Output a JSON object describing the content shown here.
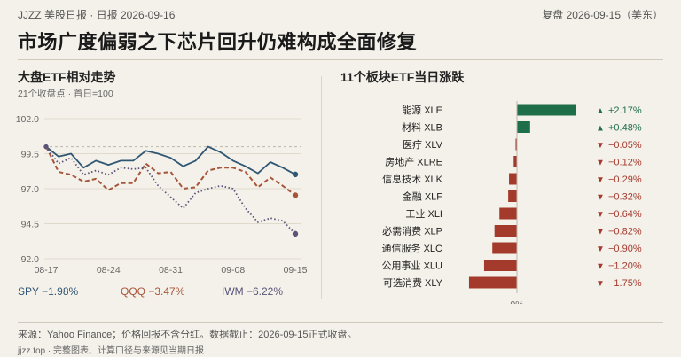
{
  "header": {
    "left": "JJZZ 美股日报 · 日报 2026-09-16",
    "right": "复盘 2026-09-15（美东）"
  },
  "title": "市场广度偏弱之下芯片回升仍难构成全面修复",
  "colors": {
    "SPY": "#2f5673",
    "QQQ": "#a6553a",
    "IWM": "#5a5478",
    "up": "#1f6e4a",
    "down": "#a33a2c"
  },
  "chart_data": [
    {
      "type": "line",
      "title": "大盘ETF相对走势",
      "subtitle": "21个收盘点 · 首日=100",
      "ylim": [
        92.0,
        102.0
      ],
      "yticks": [
        "102.0",
        "99.5",
        "97.0",
        "94.5",
        "92.0"
      ],
      "yticks_values": [
        102.0,
        99.5,
        97.0,
        94.5,
        92.0
      ],
      "xticks": [
        "08-17",
        "08-24",
        "08-31",
        "09-08",
        "09-15"
      ],
      "xticks_index": [
        0,
        5,
        10,
        15,
        20
      ],
      "series": [
        {
          "name": "SPY",
          "label": "SPY −1.98%",
          "values": [
            100.0,
            99.3,
            99.5,
            98.5,
            99.0,
            98.7,
            99.0,
            99.0,
            99.7,
            99.5,
            99.2,
            98.6,
            99.0,
            100.0,
            99.6,
            99.0,
            98.6,
            98.1,
            98.9,
            98.5,
            98.02
          ]
        },
        {
          "name": "QQQ",
          "label": "QQQ −3.47%",
          "values": [
            100.0,
            98.2,
            98.0,
            97.5,
            97.7,
            96.9,
            97.4,
            97.4,
            98.8,
            98.1,
            98.2,
            97.0,
            97.1,
            98.3,
            98.5,
            98.5,
            98.2,
            97.1,
            97.8,
            97.2,
            96.53
          ]
        },
        {
          "name": "IWM",
          "label": "IWM −6.22%",
          "values": [
            100.0,
            98.8,
            99.2,
            98.0,
            98.3,
            98.0,
            98.5,
            98.4,
            98.5,
            97.2,
            96.4,
            95.6,
            96.7,
            97.0,
            97.2,
            97.0,
            95.6,
            94.6,
            94.9,
            94.7,
            93.78
          ]
        }
      ]
    },
    {
      "type": "bar",
      "title": "11个板块ETF当日涨跌",
      "xlim": [
        -1.75,
        2.17
      ],
      "zero_label": "0%",
      "categories": [
        "能源 XLE",
        "材料 XLB",
        "医疗 XLV",
        "房地产 XLRE",
        "信息技术 XLK",
        "金融 XLF",
        "工业 XLI",
        "必需消费 XLP",
        "通信服务 XLC",
        "公用事业 XLU",
        "可选消费 XLY"
      ],
      "values": [
        2.17,
        0.48,
        -0.05,
        -0.12,
        -0.29,
        -0.32,
        -0.64,
        -0.82,
        -0.9,
        -1.2,
        -1.75
      ],
      "value_labels": [
        "+2.17%",
        "+0.48%",
        "−0.05%",
        "−0.12%",
        "−0.29%",
        "−0.32%",
        "−0.64%",
        "−0.82%",
        "−0.90%",
        "−1.20%",
        "−1.75%"
      ],
      "markers": [
        "▲",
        "▲",
        "▼",
        "▼",
        "▼",
        "▼",
        "▼",
        "▼",
        "▼",
        "▼",
        "▼"
      ]
    }
  ],
  "footer": {
    "source": "来源：Yahoo Finance；价格回报不含分红。数据截止：2026-09-15正式收盘。",
    "site": "jjzz.top · 完整图表、计算口径与来源见当期日报"
  }
}
